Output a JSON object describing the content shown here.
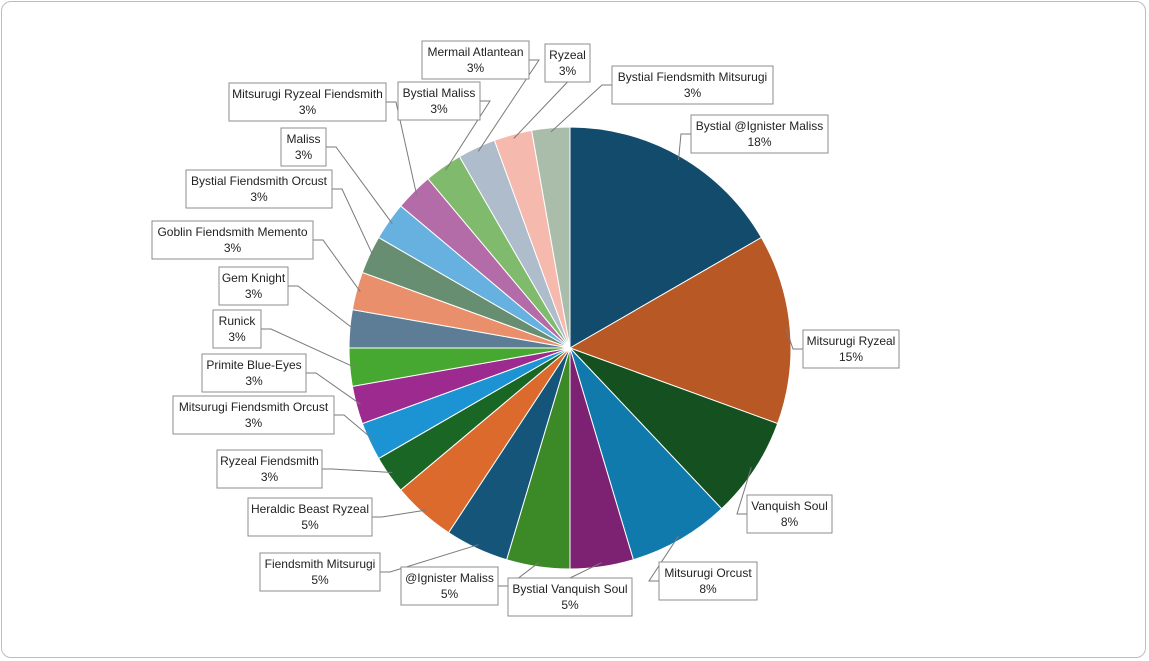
{
  "chart_data": {
    "type": "pie",
    "title": "",
    "start_angle_deg": 0,
    "direction": "clockwise",
    "slices": [
      {
        "name": "Bystial @Ignister Maliss",
        "pct_label": "18%",
        "value": 18,
        "color": "#124b6b"
      },
      {
        "name": "Mitsurugi Ryzeal",
        "pct_label": "15%",
        "value": 15,
        "color": "#b85824"
      },
      {
        "name": "Vanquish Soul",
        "pct_label": "8%",
        "value": 8,
        "color": "#145020"
      },
      {
        "name": "Mitsurugi Orcust",
        "pct_label": "8%",
        "value": 8,
        "color": "#0f7aab"
      },
      {
        "name": "Bystial Vanquish Soul",
        "pct_label": "5%",
        "value": 5,
        "color": "#7d2272"
      },
      {
        "name": "@Ignister Maliss",
        "pct_label": "5%",
        "value": 5,
        "color": "#3b8a27"
      },
      {
        "name": "Fiendsmith Mitsurugi",
        "pct_label": "5%",
        "value": 5,
        "color": "#145579"
      },
      {
        "name": "Heraldic Beast Ryzeal",
        "pct_label": "5%",
        "value": 5,
        "color": "#db6a2c"
      },
      {
        "name": "Ryzeal Fiendsmith",
        "pct_label": "3%",
        "value": 3,
        "color": "#1a6625"
      },
      {
        "name": "Mitsurugi Fiendsmith Orcust",
        "pct_label": "3%",
        "value": 3,
        "color": "#1c93d2"
      },
      {
        "name": "Primite Blue-Eyes",
        "pct_label": "3%",
        "value": 3,
        "color": "#9d2a8e"
      },
      {
        "name": "Runick",
        "pct_label": "3%",
        "value": 3,
        "color": "#46a830"
      },
      {
        "name": "Gem Knight",
        "pct_label": "3%",
        "value": 3,
        "color": "#5d7d96"
      },
      {
        "name": "Goblin Fiendsmith Memento",
        "pct_label": "3%",
        "value": 3,
        "color": "#ea8f6c"
      },
      {
        "name": "Bystial Fiendsmith Orcust",
        "pct_label": "3%",
        "value": 3,
        "color": "#678e70"
      },
      {
        "name": "Maliss",
        "pct_label": "3%",
        "value": 3,
        "color": "#66b1e0"
      },
      {
        "name": "Mitsurugi Ryzeal Fiendsmith",
        "pct_label": "3%",
        "value": 3,
        "color": "#b46ca8"
      },
      {
        "name": "Bystial Maliss",
        "pct_label": "3%",
        "value": 3,
        "color": "#80bb6d"
      },
      {
        "name": "Mermail Atlantean",
        "pct_label": "3%",
        "value": 3,
        "color": "#aebccc"
      },
      {
        "name": "Ryzeal",
        "pct_label": "3%",
        "value": 3,
        "color": "#f5b9ae"
      },
      {
        "name": "Bystial Fiendsmith Mitsurugi",
        "pct_label": "3%",
        "value": 3,
        "color": "#aabcaa"
      }
    ]
  }
}
